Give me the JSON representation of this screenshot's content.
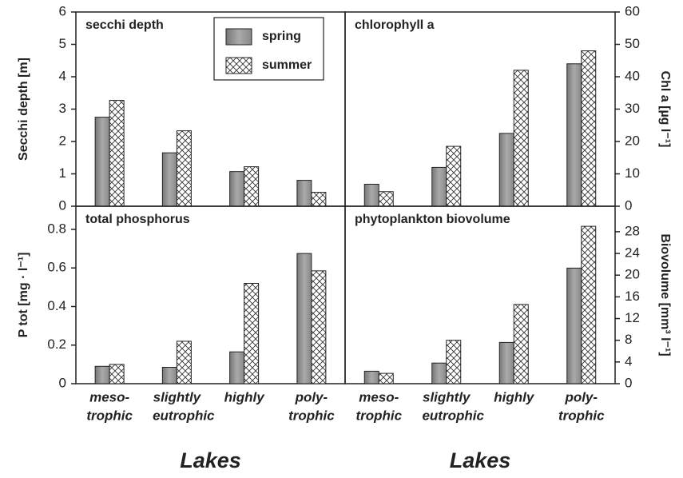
{
  "chart_data": [
    {
      "type": "bar",
      "title": "secchi depth",
      "ylabel": "Secchi depth [m]",
      "yaxis_position": "left",
      "ylim": [
        0,
        6
      ],
      "yticks": [
        0,
        1,
        2,
        3,
        4,
        5,
        6
      ],
      "legend": "top-center",
      "series": [
        {
          "name": "spring",
          "color": "#999999",
          "values": [
            2.75,
            1.65,
            1.07,
            0.8
          ]
        },
        {
          "name": "summer",
          "color": "#ffffff",
          "hatch": "cross",
          "values": [
            3.27,
            2.33,
            1.22,
            0.43
          ]
        }
      ]
    },
    {
      "type": "bar",
      "title": "chlorophyll a",
      "ylabel": "Chl a [µg l⁻¹]",
      "yaxis_position": "right",
      "ylim": [
        0,
        60
      ],
      "yticks": [
        0,
        10,
        20,
        30,
        40,
        50,
        60
      ],
      "series": [
        {
          "color": "#999999",
          "values": [
            6.8,
            12,
            22.5,
            44
          ]
        },
        {
          "color": "#ffffff",
          "hatch": "cross",
          "values": [
            4.5,
            18.5,
            42,
            48
          ]
        }
      ]
    },
    {
      "type": "bar",
      "title": "total phosphorus",
      "ylabel": "P tot [mg · l⁻¹]",
      "yaxis_position": "left",
      "ylim": [
        0,
        0.92
      ],
      "yticks": [
        0,
        0.2,
        0.4,
        0.6,
        0.8
      ],
      "categories": [
        "meso-",
        "slightly",
        "highly",
        "poly-"
      ],
      "category_sublabels": [
        "trophic",
        "eutrophic",
        "trophic"
      ],
      "xlabel": "Lakes",
      "series": [
        {
          "color": "#999999",
          "values": [
            0.09,
            0.085,
            0.165,
            0.675
          ]
        },
        {
          "color": "#ffffff",
          "hatch": "cross",
          "values": [
            0.1,
            0.22,
            0.52,
            0.585
          ]
        }
      ]
    },
    {
      "type": "bar",
      "title": "phytoplankton biovolume",
      "ylabel": "Biovolume [mm³ l⁻¹]",
      "yaxis_position": "right",
      "ylim": [
        0,
        32.7
      ],
      "yticks": [
        0,
        4,
        8,
        12,
        16,
        20,
        24,
        28
      ],
      "categories": [
        "meso-",
        "slightly",
        "highly",
        "poly-"
      ],
      "category_sublabels": [
        "trophic",
        "eutrophic",
        "trophic"
      ],
      "xlabel": "Lakes",
      "series": [
        {
          "color": "#999999",
          "values": [
            2.3,
            3.8,
            7.6,
            21.3
          ]
        },
        {
          "color": "#ffffff",
          "hatch": "cross",
          "values": [
            1.9,
            8.0,
            14.6,
            29.0
          ]
        }
      ]
    }
  ]
}
